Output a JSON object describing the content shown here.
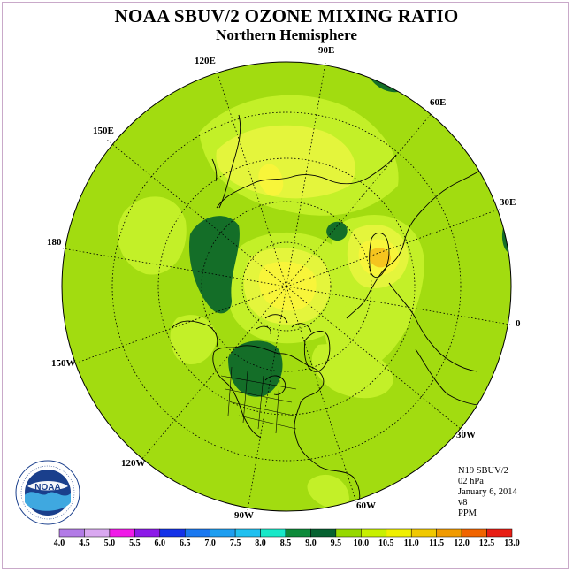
{
  "title": "NOAA SBUV/2 OZONE MIXING RATIO",
  "subtitle": "Northern Hemisphere",
  "logo_text": "NOAA",
  "longitude_labels": {
    "e90": "90E",
    "e60": "60E",
    "e30": "30E",
    "e0": "0",
    "e120": "120E",
    "e150": "150E",
    "e180": "180",
    "w150": "150W",
    "w120": "120W",
    "w90": "90W",
    "w60": "60W",
    "w30": "30W"
  },
  "info": {
    "satellite": "N19 SBUV/2",
    "level": "02 hPa",
    "date": "January 6, 2014",
    "version": "v8",
    "units": "PPM"
  },
  "colorbar": {
    "labels": [
      "4.0",
      "4.5",
      "5.0",
      "5.5",
      "6.0",
      "6.5",
      "7.0",
      "7.5",
      "8.0",
      "8.5",
      "9.0",
      "9.5",
      "10.0",
      "10.5",
      "11.0",
      "11.5",
      "12.0",
      "12.5",
      "13.0"
    ],
    "colors": [
      "#b27be6",
      "#d9a8f0",
      "#f01ae8",
      "#8c1ae8",
      "#1432e8",
      "#1a78f0",
      "#1e9ef0",
      "#20c0f0",
      "#18e8c8",
      "#0e8a3a",
      "#056130",
      "#96d800",
      "#c8f000",
      "#f0f000",
      "#f0c800",
      "#f09a00",
      "#f06400",
      "#e81e14",
      "#8c5a3a"
    ]
  },
  "map_colors": {
    "background": "#a2dc10",
    "light_green": "#c3f028",
    "yellow_green": "#e4f53c",
    "yellow": "#f8f53a",
    "orange": "#f5c41e",
    "dark_green": "#146e28",
    "coast": "#000000"
  }
}
